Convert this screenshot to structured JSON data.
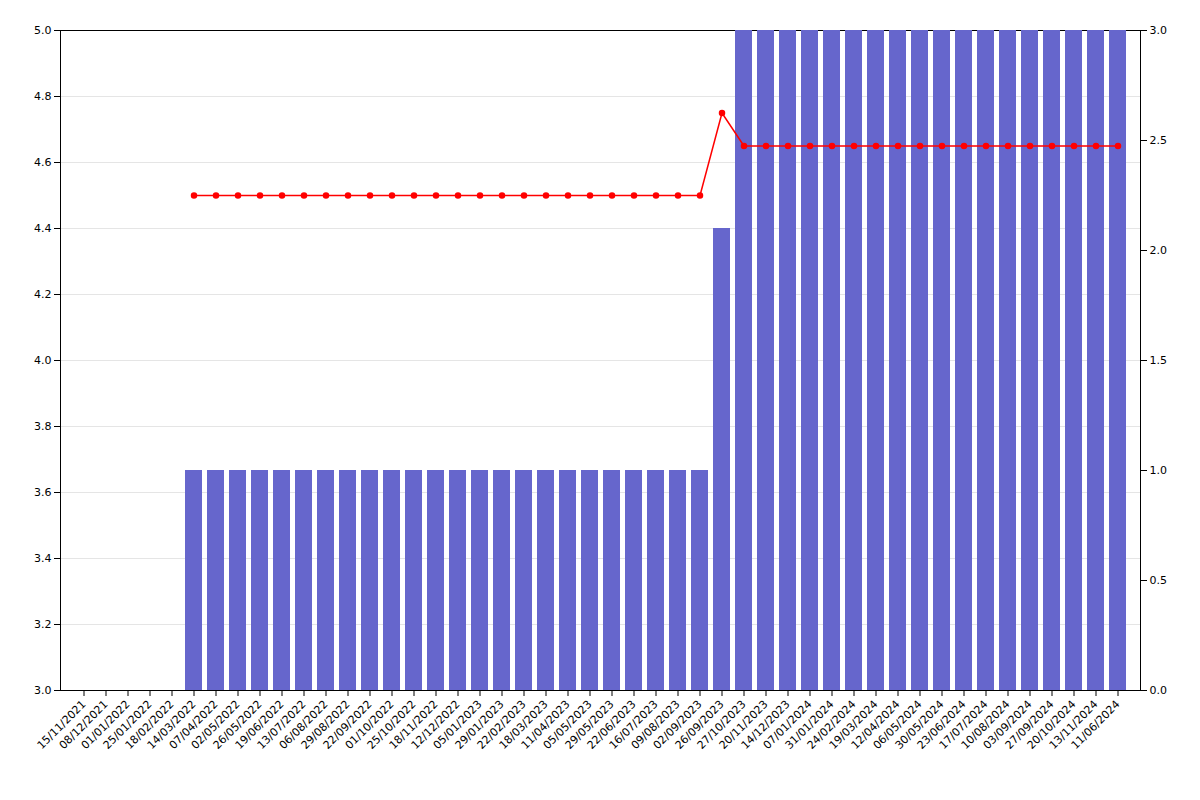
{
  "chart_data": {
    "type": "bar",
    "categories": [
      "15/11/2021",
      "08/12/2021",
      "01/01/2022",
      "25/01/2022",
      "18/02/2022",
      "14/03/2022",
      "07/04/2022",
      "02/05/2022",
      "26/05/2022",
      "19/06/2022",
      "13/07/2022",
      "06/08/2022",
      "29/08/2022",
      "22/09/2022",
      "01/10/2022",
      "25/10/2022",
      "18/11/2022",
      "12/12/2022",
      "05/01/2023",
      "29/01/2023",
      "22/02/2023",
      "18/03/2023",
      "11/04/2023",
      "05/05/2023",
      "29/05/2023",
      "22/06/2023",
      "16/07/2023",
      "09/08/2023",
      "02/09/2023",
      "26/09/2023",
      "27/10/2023",
      "20/11/2023",
      "14/12/2023",
      "07/01/2024",
      "31/01/2024",
      "24/02/2024",
      "19/03/2024",
      "12/04/2024",
      "06/05/2024",
      "30/05/2024",
      "23/06/2024",
      "17/07/2024",
      "10/08/2024",
      "03/09/2024",
      "27/09/2024",
      "20/10/2024",
      "13/11/2024",
      "11/06/2024"
    ],
    "series": [
      {
        "type": "bar",
        "axis": "y2",
        "color": "#6666cc",
        "values": [
          0,
          0,
          0,
          0,
          0,
          1.0,
          1.0,
          1.0,
          1.0,
          1.0,
          1.0,
          1.0,
          1.0,
          1.0,
          1.0,
          1.0,
          1.0,
          1.0,
          1.0,
          1.0,
          1.0,
          1.0,
          1.0,
          1.0,
          1.0,
          1.0,
          1.0,
          1.0,
          1.0,
          2.1,
          3.0,
          3.0,
          3.0,
          3.0,
          3.0,
          3.0,
          3.0,
          3.0,
          3.0,
          3.0,
          3.0,
          3.0,
          3.0,
          3.0,
          3.0,
          3.0,
          3.0,
          3.0
        ]
      },
      {
        "type": "line",
        "color": "#ff0000",
        "marker": "circle",
        "values": [
          null,
          null,
          null,
          null,
          null,
          4.5,
          4.5,
          4.5,
          4.5,
          4.5,
          4.5,
          4.5,
          4.5,
          4.5,
          4.5,
          4.5,
          4.5,
          4.5,
          4.5,
          4.5,
          4.5,
          4.5,
          4.5,
          4.5,
          4.5,
          4.5,
          4.5,
          4.5,
          4.5,
          4.75,
          4.65,
          4.65,
          4.65,
          4.65,
          4.65,
          4.65,
          4.65,
          4.65,
          4.65,
          4.65,
          4.65,
          4.65,
          4.65,
          4.65,
          4.65,
          4.65,
          4.65,
          4.65
        ]
      }
    ],
    "ylim": [
      3.0,
      5.0
    ],
    "yticks": [
      {
        "value": 3.0,
        "label": "3.0"
      },
      3.2,
      3.4,
      3.6,
      3.8,
      {
        "value": 4.0,
        "label": "4.0"
      },
      4.2,
      4.4,
      4.6,
      4.8,
      {
        "value": 5.0,
        "label": "5.0"
      }
    ],
    "y2lim": [
      0,
      3.0
    ],
    "y2ticks": [
      {
        "value": 0,
        "label": "0.0"
      },
      0.5,
      {
        "value": 1.0,
        "label": "1.0"
      },
      1.5,
      {
        "value": 2.0,
        "label": "2.0"
      },
      2.5,
      {
        "value": 3.0,
        "label": "3.0"
      }
    ],
    "grid": true
  }
}
